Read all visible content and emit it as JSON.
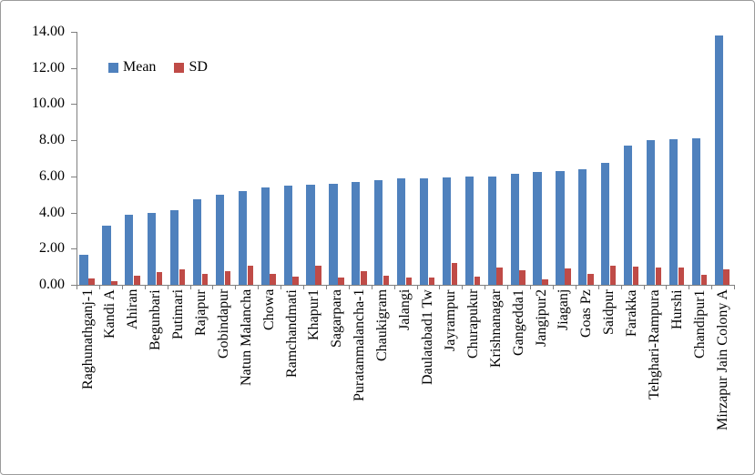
{
  "chart_data": {
    "type": "bar",
    "title": "",
    "xlabel": "",
    "ylabel": "",
    "categories": [
      "Raghunathganj-1",
      "Kandi A",
      "Ahiran",
      "Begunbari",
      "Putimari",
      "Rajapur",
      "Gobindapur",
      "Natun Malancha",
      "Chowa",
      "Ramchandmati",
      "Khapur1",
      "Sagarpara",
      "Puratanmalancha-1",
      "Chaukigram",
      "Jalangi",
      "Daulatabad1 Tw",
      "Jayrampur",
      "Churapukur",
      "Krishnanagar",
      "Gangedda1",
      "Jangipur2",
      "Jiaganj",
      "Goas Pz",
      "Saidpur",
      "Farakka",
      "Tehghari-Rampura",
      "Hurshi",
      "Chandipur1",
      "Mirzapur Jain Colony A"
    ],
    "series": [
      {
        "name": "Mean",
        "color": "#4F81BD",
        "values": [
          1.65,
          3.3,
          3.9,
          4.0,
          4.15,
          4.75,
          5.0,
          5.2,
          5.4,
          5.5,
          5.55,
          5.6,
          5.7,
          5.8,
          5.9,
          5.9,
          5.95,
          6.0,
          6.0,
          6.15,
          6.25,
          6.3,
          6.4,
          6.75,
          7.7,
          8.0,
          8.05,
          8.1,
          13.8
        ]
      },
      {
        "name": "SD",
        "color": "#BF4B47",
        "values": [
          0.35,
          0.2,
          0.5,
          0.7,
          0.85,
          0.6,
          0.75,
          1.05,
          0.6,
          0.45,
          1.05,
          0.4,
          0.75,
          0.5,
          0.4,
          0.4,
          1.2,
          0.45,
          0.95,
          0.8,
          0.3,
          0.9,
          0.6,
          1.05,
          1.0,
          0.95,
          0.95,
          0.55,
          0.85
        ]
      }
    ],
    "ylim": [
      0,
      14
    ],
    "ytick_step": 2,
    "ytick_labels": [
      "0.00",
      "2.00",
      "4.00",
      "6.00",
      "8.00",
      "10.00",
      "12.00",
      "14.00"
    ],
    "grid": false,
    "legend_position": "top-left-inside",
    "axis_color": "#808080",
    "label_color": "#000000"
  }
}
